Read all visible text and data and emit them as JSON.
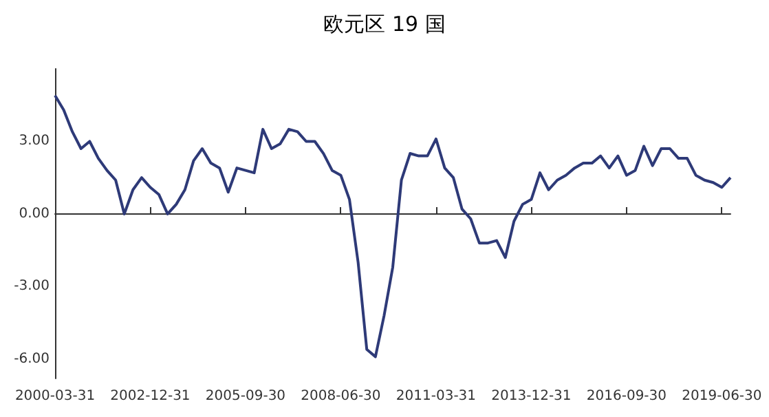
{
  "chart_data": {
    "type": "line",
    "title": "欧元区 19 国",
    "categories": [
      "2000-03-31",
      null,
      null,
      null,
      null,
      null,
      null,
      null,
      null,
      null,
      null,
      "2002-12-31",
      null,
      null,
      null,
      null,
      null,
      null,
      null,
      null,
      null,
      null,
      "2005-09-30",
      null,
      null,
      null,
      null,
      null,
      null,
      null,
      null,
      null,
      null,
      "2008-06-30",
      null,
      null,
      null,
      null,
      null,
      null,
      null,
      null,
      null,
      null,
      "2011-03-31",
      null,
      null,
      null,
      null,
      null,
      null,
      null,
      null,
      null,
      null,
      "2013-12-31",
      null,
      null,
      null,
      null,
      null,
      null,
      null,
      null,
      null,
      null,
      "2016-09-30",
      null,
      null,
      null,
      null,
      null,
      null,
      null,
      null,
      null,
      null,
      "2019-06-30",
      null
    ],
    "series": [
      {
        "color": "#2e3a78",
        "values": [
          4.9,
          4.3,
          3.4,
          2.7,
          3.0,
          2.3,
          1.8,
          1.4,
          0.0,
          1.0,
          1.5,
          1.1,
          0.8,
          0.0,
          0.4,
          1.0,
          2.2,
          2.7,
          2.1,
          1.9,
          0.9,
          1.9,
          1.8,
          1.7,
          3.5,
          2.7,
          2.9,
          3.5,
          3.4,
          3.0,
          3.0,
          2.5,
          1.8,
          1.6,
          0.6,
          -2.0,
          -5.6,
          -5.9,
          -4.2,
          -2.2,
          1.4,
          2.5,
          2.4,
          2.4,
          3.1,
          1.9,
          1.5,
          0.2,
          -0.2,
          -1.2,
          -1.2,
          -1.1,
          -1.8,
          -0.3,
          0.4,
          0.6,
          1.7,
          1.0,
          1.4,
          1.6,
          1.9,
          2.1,
          2.1,
          2.4,
          1.9,
          2.4,
          1.6,
          1.8,
          2.8,
          2.0,
          2.7,
          2.7,
          2.3,
          2.3,
          1.6,
          1.4,
          1.3,
          1.1,
          1.5
        ]
      }
    ],
    "ylim": [
      -6.8,
      6
    ],
    "yticks": [
      {
        "value": -6,
        "label": "-6.00"
      },
      {
        "value": -3,
        "label": "-3.00"
      },
      {
        "value": 0,
        "label": "0.00"
      },
      {
        "value": 3,
        "label": "3.00"
      }
    ],
    "line_style": "solid"
  }
}
